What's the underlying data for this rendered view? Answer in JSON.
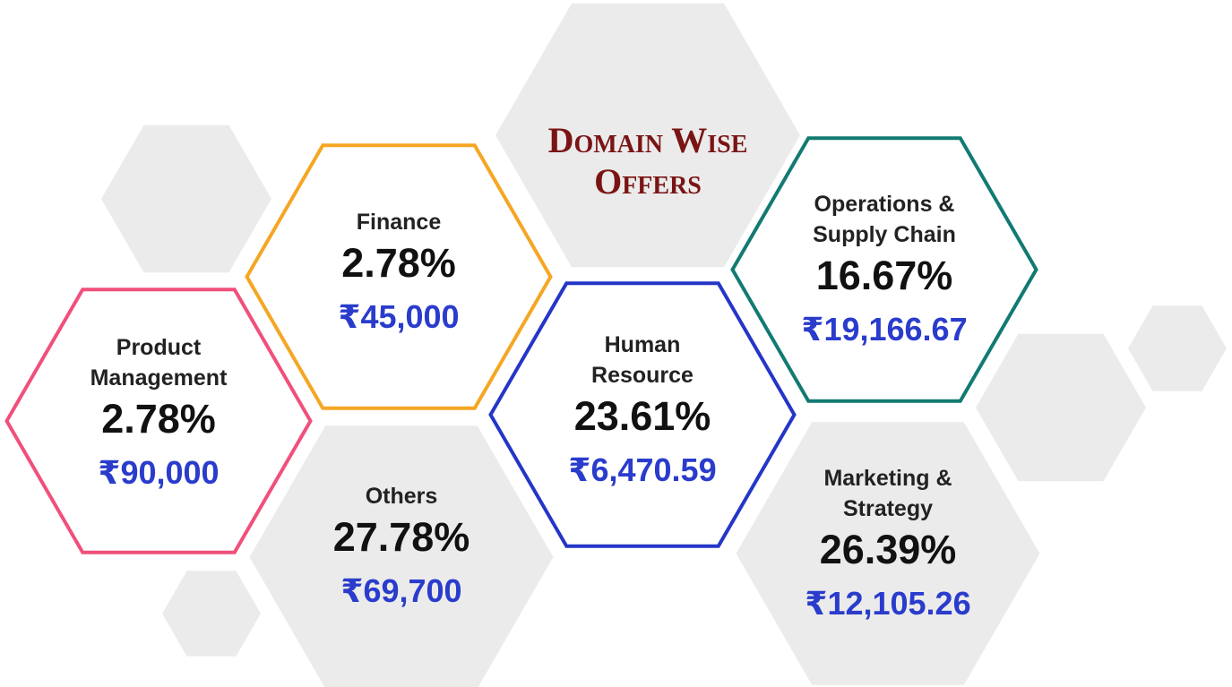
{
  "title": "Domain Wise Offers",
  "domains": [
    {
      "name": "Product Management",
      "share": "2.78%",
      "amount": "₹90,000"
    },
    {
      "name": "Finance",
      "share": "2.78%",
      "amount": "₹45,000"
    },
    {
      "name": "Others",
      "share": "27.78%",
      "amount": "₹69,700"
    },
    {
      "name": "Human Resource",
      "share": "23.61%",
      "amount": "₹6,470.59"
    },
    {
      "name": "Operations & Supply Chain",
      "share": "16.67%",
      "amount": "₹19,166.67"
    },
    {
      "name": "Marketing & Strategy",
      "share": "26.39%",
      "amount": "₹12,105.26"
    }
  ]
}
